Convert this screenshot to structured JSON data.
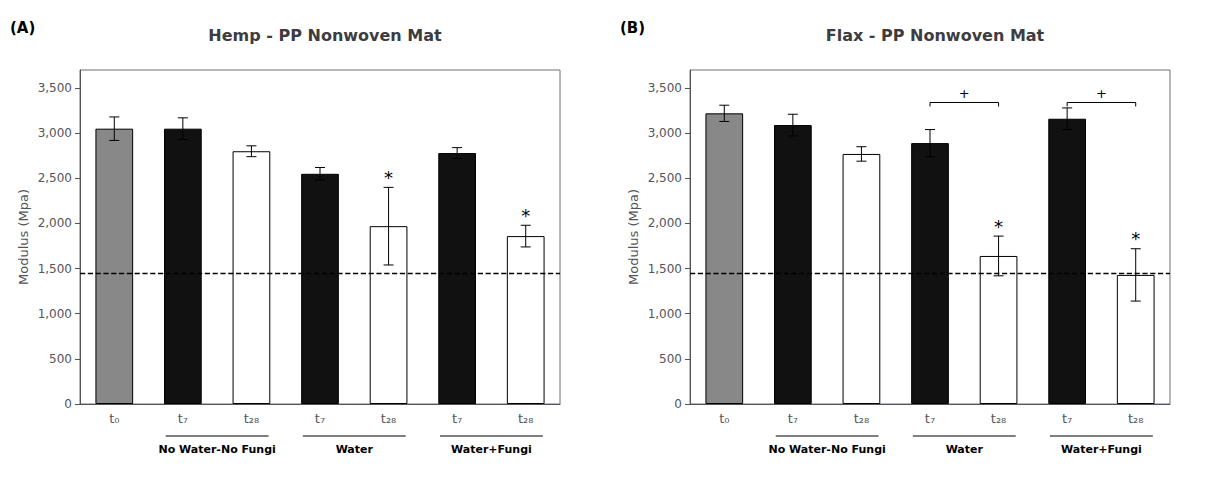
{
  "chart_data": [
    {
      "type": "bar",
      "title": "Hemp - PP Nonwoven Mat",
      "panel_label": "(A)",
      "ylabel": "Modulus (Mpa)",
      "categories": [
        "t₀",
        "t₇",
        "t₂₈",
        "t₇",
        "t₂₈",
        "t₇",
        "t₂₈"
      ],
      "values": [
        3050,
        3050,
        2800,
        2550,
        1970,
        2780,
        1860
      ],
      "errors": [
        130,
        120,
        60,
        70,
        430,
        60,
        120
      ],
      "colors": [
        "#888888",
        "#111111",
        "#ffffff",
        "#111111",
        "#ffffff",
        "#111111",
        "#ffffff"
      ],
      "ylim": [
        0,
        3700
      ],
      "yticks": [
        0,
        500,
        1000,
        1500,
        2000,
        2500,
        3000,
        3500
      ],
      "reference_line": 1450,
      "annotations": [
        {
          "text": "*",
          "index": 4
        },
        {
          "text": "*",
          "index": 6
        }
      ],
      "brackets": [],
      "groups": [
        {
          "label": "No Water-No Fungi",
          "from": 1,
          "to": 2
        },
        {
          "label": "Water",
          "from": 3,
          "to": 4
        },
        {
          "label": "Water+Fungi",
          "from": 5,
          "to": 6
        }
      ],
      "grid": false
    },
    {
      "type": "bar",
      "title": "Flax - PP Nonwoven Mat",
      "panel_label": "(B)",
      "ylabel": "Modulus (Mpa)",
      "categories": [
        "t₀",
        "t₇",
        "t₂₈",
        "t₇",
        "t₂₈",
        "t₇",
        "t₂₈"
      ],
      "values": [
        3220,
        3090,
        2770,
        2890,
        1640,
        3160,
        1430
      ],
      "errors": [
        90,
        120,
        80,
        150,
        220,
        120,
        290
      ],
      "colors": [
        "#888888",
        "#111111",
        "#ffffff",
        "#111111",
        "#ffffff",
        "#111111",
        "#ffffff"
      ],
      "ylim": [
        0,
        3700
      ],
      "yticks": [
        0,
        500,
        1000,
        1500,
        2000,
        2500,
        3000,
        3500
      ],
      "reference_line": 1450,
      "annotations": [
        {
          "text": "*",
          "index": 4
        },
        {
          "text": "*",
          "index": 6
        }
      ],
      "brackets": [
        {
          "text": "+",
          "from": 3,
          "to": 4,
          "y": 3340
        },
        {
          "text": "+",
          "from": 5,
          "to": 6,
          "y": 3340
        }
      ],
      "groups": [
        {
          "label": "No Water-No Fungi",
          "from": 1,
          "to": 2
        },
        {
          "label": "Water",
          "from": 3,
          "to": 4
        },
        {
          "label": "Water+Fungi",
          "from": 5,
          "to": 6
        }
      ],
      "grid": false
    }
  ]
}
